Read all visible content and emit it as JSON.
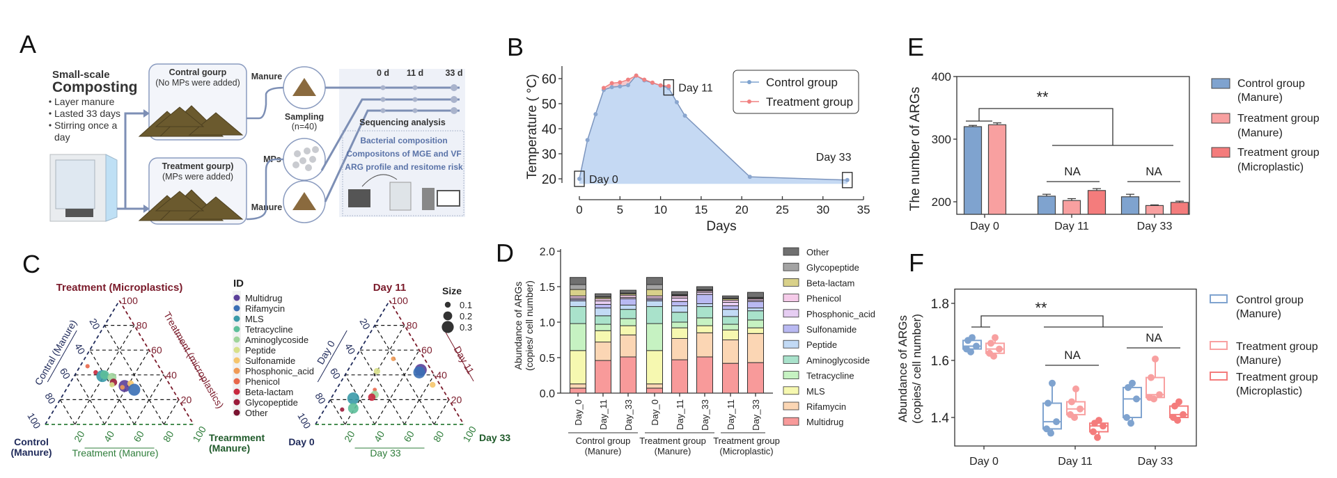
{
  "panel_labels": {
    "a": "A",
    "b": "B",
    "c": "C",
    "d": "D",
    "e": "E",
    "f": "F"
  },
  "panel_a": {
    "title_line1": "Small-scale",
    "title_line2": "Composting",
    "bullets": [
      "Layer manure",
      "Lasted 33 days",
      "Stirring once a",
      "day"
    ],
    "control_box": {
      "title": "Contral gourp",
      "subtitle": "(No MPs were added)"
    },
    "treatment_box": {
      "title": "Treatment gourp)",
      "subtitle": "(MPs were added)"
    },
    "manure_label_top": "Manure",
    "mps_label": "MPs",
    "manure_label_bottom": "Manure",
    "sampling": {
      "line1": "Sampling",
      "line2": "(n=40)"
    },
    "timeline": [
      "0 d",
      "11 d",
      "33 d"
    ],
    "sequencing_title": "Sequencing analysis",
    "sequencing_outputs": [
      "Bacterial composition",
      "Compositons of MGE and VF",
      "ARG profile and resitome risk"
    ],
    "colors": {
      "panel_bg": "#eef1f8",
      "line": "#7d8fb5",
      "text_blue": "#5a73a8",
      "manure": "#6b5a2e"
    }
  },
  "chart_data": [
    {
      "panel": "B",
      "type": "line",
      "xlabel": "Days",
      "ylabel": "Temperature ( °C)",
      "xlim": [
        0,
        35
      ],
      "ylim": [
        18,
        64
      ],
      "xticks": [
        0,
        5,
        10,
        15,
        20,
        25,
        30,
        35
      ],
      "yticks": [
        20,
        30,
        40,
        50,
        60
      ],
      "legend_position": "top-right",
      "series": [
        {
          "name": "Control group",
          "color": "#7fa3cf",
          "x": [
            0,
            1,
            2,
            3,
            4,
            5,
            6,
            7,
            8,
            9,
            10,
            11,
            12,
            13,
            21,
            33
          ],
          "y": [
            20,
            35.5,
            45.8,
            55.5,
            56.6,
            56.9,
            57.4,
            61.2,
            59.3,
            58.3,
            57.3,
            56.2,
            50.6,
            45.2,
            20.8,
            19.5
          ]
        },
        {
          "name": "Treatment group",
          "color": "#f08080",
          "x": [
            3,
            4,
            5,
            6,
            7,
            8,
            9,
            10,
            11
          ],
          "y": [
            56.3,
            58.2,
            58.5,
            59.6,
            61.2,
            59.6,
            58.4,
            57.3,
            57
          ]
        }
      ],
      "annotations": [
        {
          "label": "Day 0",
          "x": 0,
          "y": 20
        },
        {
          "label": "Day 11",
          "x": 11,
          "y": 56.5
        },
        {
          "label": "Day 33",
          "x": 33,
          "y": 19.5
        }
      ]
    },
    {
      "panel": "C-left",
      "type": "scatter",
      "subtype": "ternary",
      "top_title": "Treatment (Microplastics)",
      "left_axis": "Contral (Manure)",
      "right_axis": "Treatment (microplastics)",
      "bottom_axis": "Treatment (Manure)",
      "corner_left": [
        "Control",
        "(Manure)"
      ],
      "corner_right": [
        "Trearmment",
        "(Manure)"
      ],
      "ticks": [
        20,
        40,
        60,
        80,
        100
      ],
      "points": [
        {
          "id": "Phenicol",
          "top": 47,
          "right": 5,
          "size": 0.05
        },
        {
          "id": "Beta-lactam",
          "top": 42,
          "right": 13,
          "size": 0.06
        },
        {
          "id": "MLS",
          "top": 39,
          "right": 19,
          "size": 0.3
        },
        {
          "id": "Tetracycline",
          "top": 40,
          "right": 20,
          "size": 0.2
        },
        {
          "id": "Aminoglycoside",
          "top": 38,
          "right": 26,
          "size": 0.2
        },
        {
          "id": "Glycopeptide",
          "top": 34,
          "right": 29,
          "size": 0.15
        },
        {
          "id": "Peptide",
          "top": 32,
          "right": 29,
          "size": 0.08
        },
        {
          "id": "Multidrug",
          "top": 31,
          "right": 38,
          "size": 0.3
        },
        {
          "id": "Sulfonamide",
          "top": 33,
          "right": 41,
          "size": 0.12
        },
        {
          "id": "Phosphonic_acid",
          "top": 30,
          "right": 37,
          "size": 0.06
        },
        {
          "id": "Rifamycin",
          "top": 28,
          "right": 46,
          "size": 0.3
        }
      ]
    },
    {
      "panel": "C-right",
      "type": "scatter",
      "subtype": "ternary",
      "top_title": "Day 11",
      "left_axis": "Day 0",
      "right_axis": "Day 11",
      "bottom_axis": "Day 33",
      "corner_left": [
        "Day 0"
      ],
      "corner_right": [
        "Day 33"
      ],
      "ticks": [
        20,
        40,
        60,
        80,
        100
      ],
      "points": [
        {
          "id": "Phosphonic_acid",
          "top": 53,
          "right": 26,
          "size": 0.06
        },
        {
          "id": "Peptide",
          "top": 43,
          "right": 20,
          "size": 0.12
        },
        {
          "id": "Multidrug",
          "top": 44,
          "right": 49,
          "size": 0.3
        },
        {
          "id": "Rifamycin",
          "top": 42,
          "right": 49,
          "size": 0.3
        },
        {
          "id": "Sulfonamide",
          "top": 32,
          "right": 63,
          "size": 0.1
        },
        {
          "id": "Phenicol",
          "top": 28,
          "right": 26,
          "size": 0.04
        },
        {
          "id": "Aminoglycoside",
          "top": 24,
          "right": 28,
          "size": 0.17
        },
        {
          "id": "Beta-lactam",
          "top": 22,
          "right": 27,
          "size": 0.15
        },
        {
          "id": "MLS",
          "top": 21,
          "right": 15,
          "size": 0.3
        },
        {
          "id": "Tetracycline",
          "top": 13,
          "right": 19,
          "size": 0.25
        },
        {
          "id": "Glycopeptide",
          "top": 12,
          "right": 12,
          "size": 0.05
        }
      ]
    },
    {
      "panel": "C-legend",
      "id_title": "ID",
      "ids": [
        "Multidrug",
        "Rifamycin",
        "MLS",
        "Tetracycline",
        "Aminoglycoside",
        "Peptide",
        "Sulfonamide",
        "Phosphonic_acid",
        "Phenicol",
        "Beta-lactam",
        "Glycopeptide",
        "Other"
      ],
      "id_colors": [
        "#5b3f99",
        "#3a6fb5",
        "#3a9aa8",
        "#5dbf9a",
        "#9fd49b",
        "#d8e08a",
        "#f5c56c",
        "#f09a55",
        "#e8674a",
        "#c8283e",
        "#9b1b3a",
        "#7a1230"
      ],
      "size_title": "Size",
      "sizes": [
        0.1,
        0.2,
        0.3
      ],
      "size_labels": [
        "0.1",
        "0.2",
        "0.3"
      ]
    },
    {
      "panel": "D",
      "type": "bar",
      "stacked": true,
      "ylabel": [
        "Abundance of ARGs",
        "(copies/ cell number)"
      ],
      "ylim": [
        0,
        2.0
      ],
      "yticks": [
        "0.0",
        "0.5",
        "1.0",
        "1.5",
        "2.0"
      ],
      "categories": [
        "Day_0",
        "Day_11",
        "Day_33",
        "Day_0",
        "Day_11",
        "Day_33",
        "Day_11",
        "Day_33"
      ],
      "groups": [
        {
          "label": [
            "Control group",
            "(Manure)"
          ],
          "bars": [
            0,
            1,
            2
          ]
        },
        {
          "label": [
            "Treatment group",
            "(Manure)"
          ],
          "bars": [
            3,
            4,
            5
          ]
        },
        {
          "label": [
            "Treatment group",
            "(Microplastic)"
          ],
          "bars": [
            6,
            7
          ]
        }
      ],
      "legend_position": "right",
      "series": [
        {
          "name": "Multidrug",
          "color": "#f89a9a",
          "values": [
            0.07,
            0.46,
            0.51,
            0.07,
            0.47,
            0.51,
            0.42,
            0.43
          ]
        },
        {
          "name": "Rifamycin",
          "color": "#fbd6b4",
          "values": [
            0.06,
            0.26,
            0.31,
            0.06,
            0.3,
            0.34,
            0.33,
            0.41
          ]
        },
        {
          "name": "MLS",
          "color": "#f6f8b0",
          "values": [
            0.47,
            0.16,
            0.13,
            0.47,
            0.15,
            0.1,
            0.14,
            0.08
          ]
        },
        {
          "name": "Tetracycline",
          "color": "#c6f2c2",
          "values": [
            0.38,
            0.09,
            0.1,
            0.38,
            0.08,
            0.11,
            0.08,
            0.11
          ]
        },
        {
          "name": "Aminoglycoside",
          "color": "#a9e2cb",
          "values": [
            0.24,
            0.12,
            0.13,
            0.24,
            0.14,
            0.16,
            0.11,
            0.13
          ]
        },
        {
          "name": "Peptide",
          "color": "#c2daf5",
          "values": [
            0.08,
            0.11,
            0.06,
            0.08,
            0.09,
            0.04,
            0.1,
            0.04
          ]
        },
        {
          "name": "Sulfonamide",
          "color": "#b9b9f2",
          "values": [
            0.02,
            0.05,
            0.09,
            0.02,
            0.06,
            0.13,
            0.05,
            0.09
          ]
        },
        {
          "name": "Phosphonic_acid",
          "color": "#e6cdf2",
          "values": [
            0.02,
            0.05,
            0.02,
            0.02,
            0.05,
            0.03,
            0.05,
            0.02
          ]
        },
        {
          "name": "Phenicol",
          "color": "#f5cbe9",
          "values": [
            0.03,
            0.03,
            0.03,
            0.03,
            0.03,
            0.02,
            0.03,
            0.02
          ]
        },
        {
          "name": "Beta-lactam",
          "color": "#d9d18a",
          "values": [
            0.09,
            0.02,
            0.02,
            0.09,
            0.01,
            0.01,
            0.02,
            0.01
          ]
        },
        {
          "name": "Glycopeptide",
          "color": "#a3a3a3",
          "values": [
            0.07,
            0.01,
            0.01,
            0.07,
            0.01,
            0.01,
            0.01,
            0.01
          ]
        },
        {
          "name": "Other",
          "color": "#707070",
          "values": [
            0.1,
            0.04,
            0.04,
            0.1,
            0.04,
            0.04,
            0.03,
            0.07
          ]
        }
      ]
    },
    {
      "panel": "E",
      "type": "bar",
      "ylabel": "The number of ARGs",
      "ylim": [
        180,
        400
      ],
      "yticks": [
        200,
        300,
        400
      ],
      "categories": [
        "Day 0",
        "Day 11",
        "Day 33"
      ],
      "legend_position": "right",
      "series": [
        {
          "name": [
            "Control group",
            "(Manure)"
          ],
          "color": "#7fa3cf",
          "values": [
            320,
            209,
            208
          ],
          "errors": [
            2,
            3,
            4
          ]
        },
        {
          "name": [
            "Treatment group",
            "(Manure)"
          ],
          "color": "#f8a0a0",
          "values": [
            323,
            202,
            194
          ],
          "errors": [
            3,
            3,
            1
          ]
        },
        {
          "name": [
            "Treatment group",
            "(Microplastic)"
          ],
          "color": "#f47c7c",
          "values": [
            null,
            218,
            199
          ],
          "errors": [
            null,
            3,
            2
          ]
        }
      ],
      "significance": [
        {
          "label": "**",
          "between": [
            "Day 0",
            "Day 11 + Day 33"
          ]
        },
        {
          "label": "NA",
          "within": "Day 11"
        },
        {
          "label": "NA",
          "within": "Day 33"
        }
      ]
    },
    {
      "panel": "F",
      "type": "box",
      "ylabel": [
        "Abundance of ARGs",
        "(copies/ cell number)"
      ],
      "ylim": [
        1.3,
        1.85
      ],
      "yticks": [
        "1.4",
        "1.6",
        "1.8"
      ],
      "categories": [
        "Day 0",
        "Day 11",
        "Day 33"
      ],
      "legend_position": "right",
      "series": [
        {
          "name": [
            "Control group",
            "(Manure)"
          ],
          "color": "#7fa3cf",
          "boxes": [
            [
              1.63,
              1.64,
              1.65,
              1.67,
              1.68
            ],
            [
              1.345,
              1.36,
              1.385,
              1.45,
              1.52
            ],
            [
              1.38,
              1.4,
              1.465,
              1.505,
              1.52
            ]
          ]
        },
        {
          "name": [
            "Treatment group",
            "(Manure)"
          ],
          "color": "#f8a0a0",
          "boxes": [
            [
              1.615,
              1.625,
              1.64,
              1.66,
              1.68
            ],
            [
              1.4,
              1.41,
              1.43,
              1.455,
              1.5
            ],
            [
              1.465,
              1.47,
              1.48,
              1.54,
              1.605
            ]
          ]
        },
        {
          "name": [
            "Treatment group",
            "(Microplastic)"
          ],
          "color": "#f47c7c",
          "boxes": [
            null,
            [
              1.33,
              1.35,
              1.37,
              1.38,
              1.39
            ],
            [
              1.39,
              1.4,
              1.41,
              1.44,
              1.455
            ]
          ]
        }
      ],
      "significance": [
        {
          "label": "**",
          "between": [
            "Day 0",
            "Day 11 + Day 33"
          ]
        },
        {
          "label": "NA",
          "within": "Day 11"
        },
        {
          "label": "NA",
          "within": "Day 33"
        }
      ]
    }
  ]
}
